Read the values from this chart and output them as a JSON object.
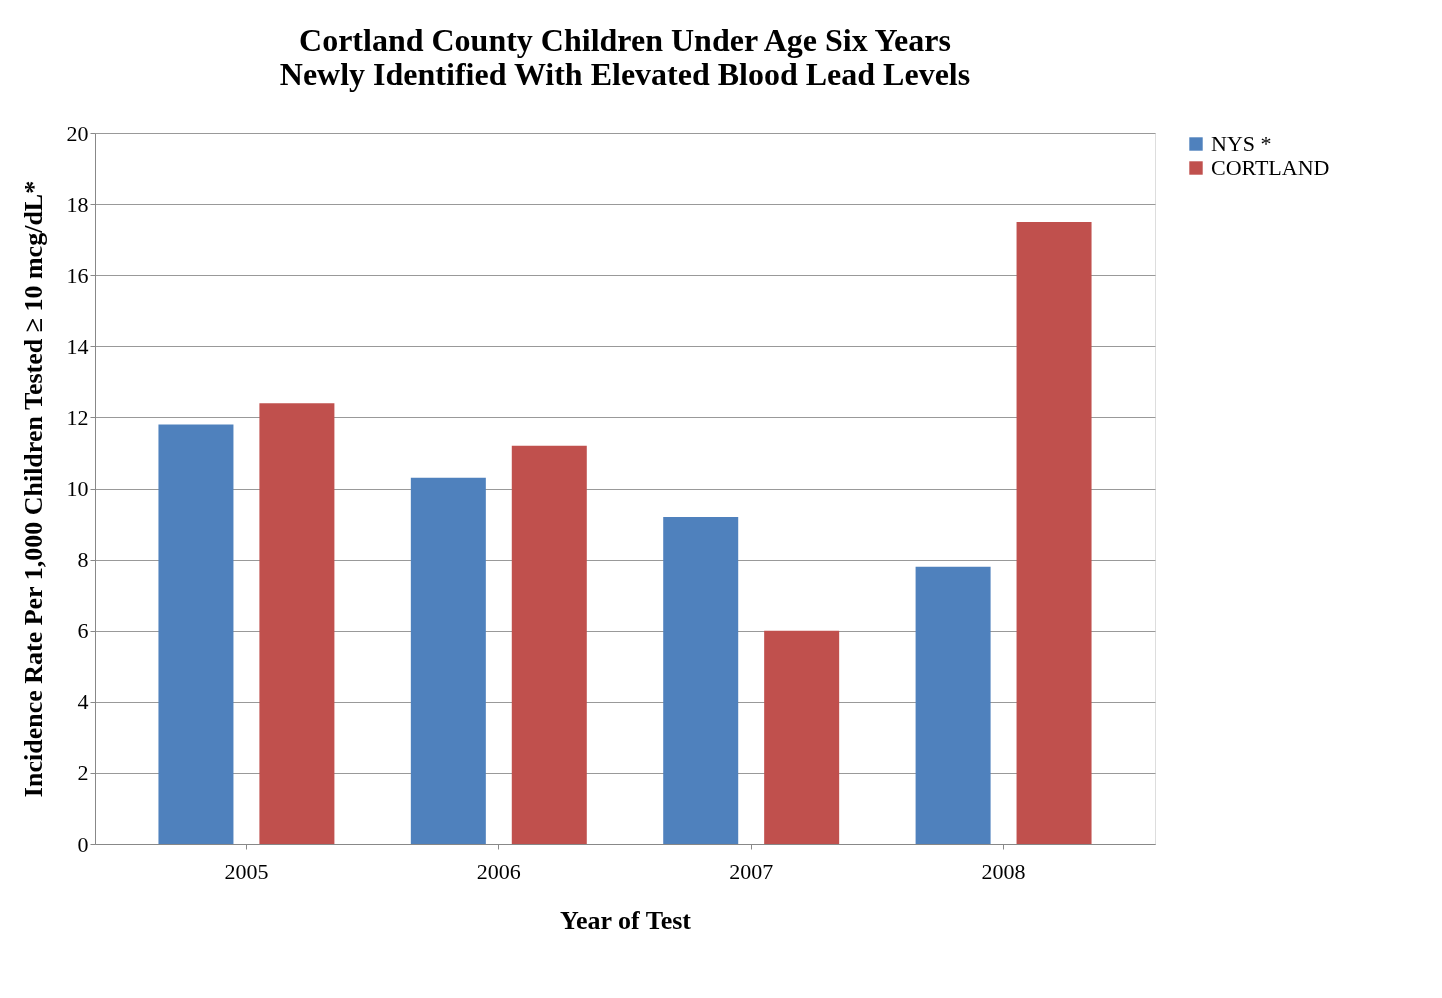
{
  "chart_data": {
    "type": "bar",
    "title": [
      "Cortland County Children Under Age Six Years",
      "Newly Identified With Elevated Blood Lead Levels"
    ],
    "xlabel": "Year of Test",
    "ylabel": "Incidence Rate Per 1,000 Children Tested ≥ 10 mcg/dL*",
    "categories": [
      "2005",
      "2006",
      "2007",
      "2008"
    ],
    "series": [
      {
        "name": "NYS *",
        "color": "#4f81bd",
        "values": [
          11.8,
          10.3,
          9.2,
          7.8
        ]
      },
      {
        "name": "CORTLAND",
        "color": "#c0504d",
        "values": [
          12.4,
          11.2,
          6.0,
          17.5
        ]
      }
    ],
    "ylim": [
      0,
      20
    ],
    "yticks": [
      0,
      2,
      4,
      6,
      8,
      10,
      12,
      14,
      16,
      18,
      20
    ],
    "grid": "y",
    "legend": "right"
  }
}
